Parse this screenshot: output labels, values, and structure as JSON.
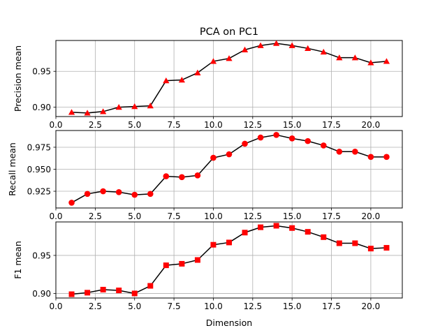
{
  "chart_data": [
    {
      "type": "line",
      "title": "PCA on PC1",
      "xlabel": "",
      "ylabel": "Precision mean",
      "xlim": [
        0.0,
        22.0
      ],
      "ylim": [
        0.887,
        0.993
      ],
      "xticks": [
        0.0,
        2.5,
        5.0,
        7.5,
        10.0,
        12.5,
        15.0,
        17.5,
        20.0
      ],
      "xtick_labels": [
        "0.0",
        "2.5",
        "5.0",
        "7.5",
        "10.0",
        "12.5",
        "15.0",
        "17.5",
        "20.0"
      ],
      "yticks": [
        0.9,
        0.95
      ],
      "ytick_labels": [
        "0.90",
        "0.95"
      ],
      "grid": true,
      "marker": "triangle",
      "line_color": "#000000",
      "marker_color": "#ff0000",
      "x": [
        1,
        2,
        3,
        4,
        5,
        6,
        7,
        8,
        9,
        10,
        11,
        12,
        13,
        14,
        15,
        16,
        17,
        18,
        19,
        20,
        21
      ],
      "y": [
        0.893,
        0.892,
        0.894,
        0.9,
        0.901,
        0.902,
        0.937,
        0.938,
        0.948,
        0.964,
        0.968,
        0.98,
        0.986,
        0.989,
        0.986,
        0.982,
        0.977,
        0.969,
        0.969,
        0.962,
        0.964
      ]
    },
    {
      "type": "line",
      "title": "",
      "xlabel": "",
      "ylabel": "Recall mean",
      "xlim": [
        0.0,
        22.0
      ],
      "ylim": [
        0.906,
        0.994
      ],
      "xticks": [
        0.0,
        2.5,
        5.0,
        7.5,
        10.0,
        12.5,
        15.0,
        17.5,
        20.0
      ],
      "xtick_labels": [
        "0.0",
        "2.5",
        "5.0",
        "7.5",
        "10.0",
        "12.5",
        "15.0",
        "17.5",
        "20.0"
      ],
      "yticks": [
        0.925,
        0.95,
        0.975
      ],
      "ytick_labels": [
        "0.925",
        "0.950",
        "0.975"
      ],
      "grid": true,
      "marker": "circle",
      "line_color": "#000000",
      "marker_color": "#ff0000",
      "x": [
        1,
        2,
        3,
        4,
        5,
        6,
        7,
        8,
        9,
        10,
        11,
        12,
        13,
        14,
        15,
        16,
        17,
        18,
        19,
        20,
        21
      ],
      "y": [
        0.912,
        0.922,
        0.925,
        0.924,
        0.921,
        0.922,
        0.942,
        0.941,
        0.943,
        0.963,
        0.967,
        0.979,
        0.986,
        0.989,
        0.985,
        0.982,
        0.977,
        0.97,
        0.97,
        0.964,
        0.964
      ]
    },
    {
      "type": "line",
      "title": "",
      "xlabel": "Dimension",
      "ylabel": "F1 mean",
      "xlim": [
        0.0,
        22.0
      ],
      "ylim": [
        0.894,
        0.994
      ],
      "xticks": [
        0.0,
        2.5,
        5.0,
        7.5,
        10.0,
        12.5,
        15.0,
        17.5,
        20.0
      ],
      "xtick_labels": [
        "0.0",
        "2.5",
        "5.0",
        "7.5",
        "10.0",
        "12.5",
        "15.0",
        "17.5",
        "20.0"
      ],
      "yticks": [
        0.9,
        0.95
      ],
      "ytick_labels": [
        "0.90",
        "0.95"
      ],
      "grid": true,
      "marker": "square",
      "line_color": "#000000",
      "marker_color": "#ff0000",
      "x": [
        1,
        2,
        3,
        4,
        5,
        6,
        7,
        8,
        9,
        10,
        11,
        12,
        13,
        14,
        15,
        16,
        17,
        18,
        19,
        20,
        21
      ],
      "y": [
        0.899,
        0.901,
        0.905,
        0.904,
        0.9,
        0.91,
        0.937,
        0.939,
        0.944,
        0.964,
        0.967,
        0.98,
        0.987,
        0.989,
        0.986,
        0.981,
        0.974,
        0.966,
        0.966,
        0.959,
        0.96
      ]
    }
  ]
}
